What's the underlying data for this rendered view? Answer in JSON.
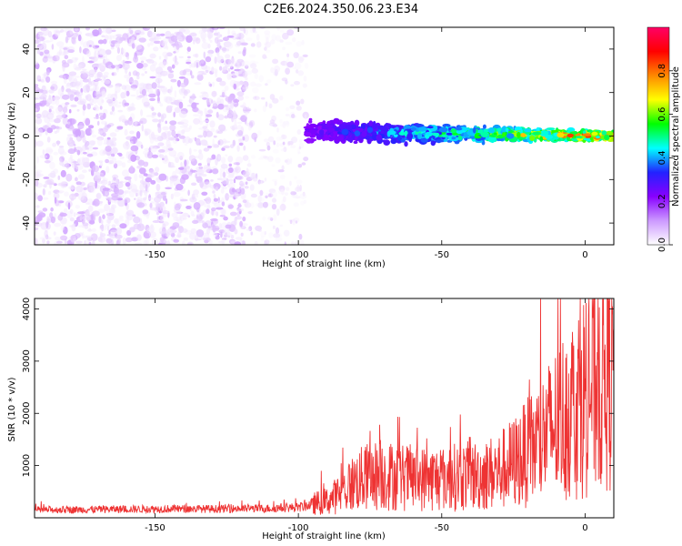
{
  "title": "C2E6.2024.350.06.23.E34",
  "chart_data": [
    {
      "type": "heatmap",
      "xlabel": "Height of straight line (km)",
      "ylabel": "Frequency (Hz)",
      "xlim": [
        -192,
        10
      ],
      "ylim": [
        -50,
        50
      ],
      "xticks": [
        -150,
        -100,
        -50,
        0
      ],
      "yticks": [
        -40,
        -20,
        0,
        20,
        40
      ],
      "colorbar": {
        "label": "Normalized spectral amplitude",
        "range": [
          0,
          1
        ],
        "ticks": [
          "0.0",
          "0.2",
          "0.4",
          "0.6",
          "0.8"
        ],
        "colormap": [
          "#ffffff",
          "#cc99ff",
          "#8800ff",
          "#2222ff",
          "#00ffff",
          "#00ff00",
          "#ffff00",
          "#ff8800",
          "#ff0000",
          "#ff0066"
        ]
      },
      "regions": [
        {
          "desc": "noise",
          "x": [
            -192,
            -118
          ],
          "y": [
            -50,
            50
          ],
          "amplitude": [
            0.02,
            0.1
          ]
        },
        {
          "desc": "sparse noise",
          "x": [
            -118,
            -97
          ],
          "y": [
            -50,
            50
          ],
          "amplitude": [
            0.01,
            0.07
          ]
        },
        {
          "desc": "signal band",
          "x": [
            -97,
            10
          ],
          "y_center": [
            2,
            0
          ],
          "y_halfwidth": [
            5,
            2
          ],
          "amplitude": [
            0.15,
            0.95
          ]
        }
      ]
    },
    {
      "type": "line",
      "xlabel": "Height of straight line (km)",
      "ylabel": "SNR (10 * v/v)",
      "xlim": [
        -192,
        10
      ],
      "ylim": [
        0,
        4200
      ],
      "xticks": [
        -150,
        -100,
        -50,
        0
      ],
      "yticks": [
        1000,
        2000,
        3000,
        4000
      ],
      "series": [
        {
          "color": "#ee3333",
          "x": [
            -192,
            -170,
            -150,
            -130,
            -110,
            -100,
            -95,
            -90,
            -85,
            -80,
            -75,
            -70,
            -65,
            -60,
            -55,
            -50,
            -45,
            -40,
            -35,
            -30,
            -25,
            -20,
            -15,
            -10,
            -5,
            0,
            5,
            10
          ],
          "y": [
            150,
            160,
            170,
            170,
            180,
            200,
            260,
            320,
            480,
            700,
            800,
            820,
            780,
            760,
            740,
            760,
            780,
            800,
            820,
            900,
            1050,
            1250,
            1500,
            1800,
            2100,
            2400,
            2700,
            3000
          ]
        }
      ]
    }
  ]
}
